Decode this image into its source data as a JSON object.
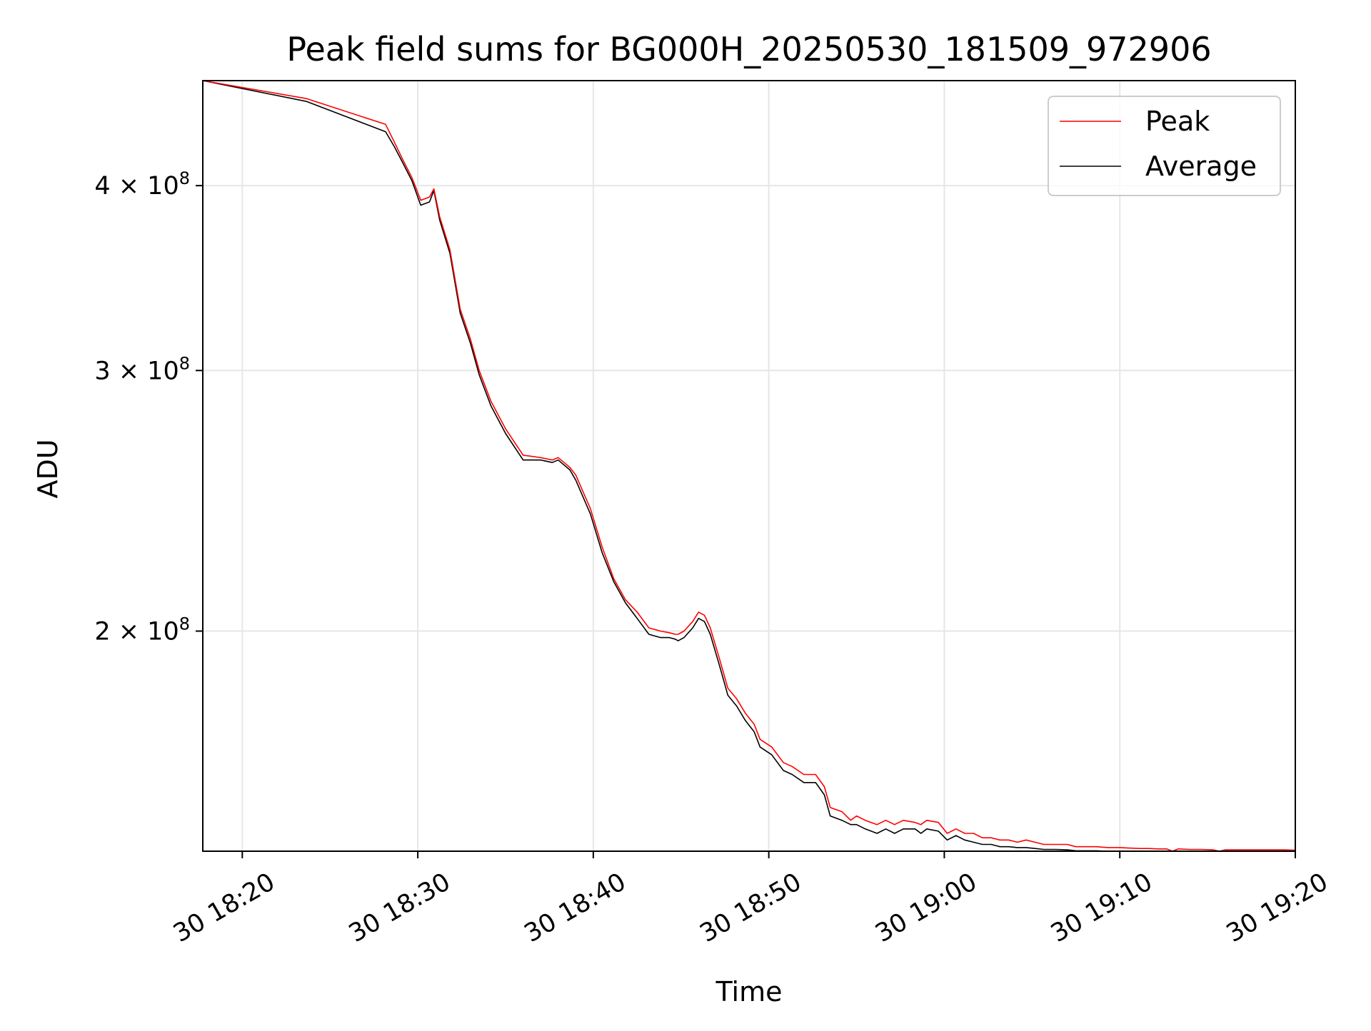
{
  "chart_data": {
    "type": "line",
    "title": "Peak field sums for BG000H_20250530_181509_972906",
    "xlabel": "Time",
    "ylabel": "ADU",
    "y_scale": "log",
    "xlim": [
      "2025-05-30 18:17:45",
      "2025-05-30 19:20:00"
    ],
    "ylim": [
      142000000,
      471000000
    ],
    "x_ticks": [
      "30 18:20",
      "30 18:30",
      "30 18:40",
      "30 18:50",
      "30 19:00",
      "30 19:10",
      "30 19:20"
    ],
    "y_ticks": [
      {
        "value": 200000000,
        "mantissa": "2",
        "base": "10",
        "exponent": "8"
      },
      {
        "value": 300000000,
        "mantissa": "3",
        "base": "10",
        "exponent": "8"
      },
      {
        "value": 400000000,
        "mantissa": "4",
        "base": "10",
        "exponent": "8"
      }
    ],
    "grid": true,
    "legend_position": "top-right",
    "series": [
      {
        "name": "Peak",
        "color": "#ff0000",
        "x": [
          "18:17:45",
          "18:23:40",
          "18:28:10",
          "18:28:40",
          "18:29:10",
          "18:29:40",
          "18:30:10",
          "18:30:40",
          "18:30:55",
          "18:31:15",
          "18:31:50",
          "18:32:25",
          "18:33:00",
          "18:33:30",
          "18:34:10",
          "18:35:00",
          "18:36:00",
          "18:37:00",
          "18:37:40",
          "18:38:00",
          "18:38:20",
          "18:38:40",
          "18:39:00",
          "18:39:50",
          "18:40:30",
          "18:41:10",
          "18:41:50",
          "18:42:30",
          "18:43:10",
          "18:43:50",
          "18:44:20",
          "18:44:40",
          "18:44:50",
          "18:45:10",
          "18:45:40",
          "18:46:00",
          "18:46:20",
          "18:46:40",
          "18:47:10",
          "18:47:40",
          "18:48:10",
          "18:48:40",
          "18:49:10",
          "18:49:30",
          "18:50:10",
          "18:50:50",
          "18:51:20",
          "18:52:00",
          "18:52:40",
          "18:53:10",
          "18:53:30",
          "18:54:10",
          "18:54:40",
          "18:55:00",
          "18:55:30",
          "18:56:10",
          "18:56:40",
          "18:57:10",
          "18:57:40",
          "18:58:20",
          "18:58:40",
          "18:59:00",
          "18:59:40",
          "19:00:10",
          "19:00:40",
          "19:01:10",
          "19:01:40",
          "19:02:10",
          "19:02:40",
          "19:03:10",
          "19:03:40",
          "19:04:10",
          "19:04:40",
          "19:05:10",
          "19:05:40",
          "19:06:20",
          "19:07:00",
          "19:07:30",
          "19:08:00",
          "19:08:40",
          "19:09:20",
          "19:10:00",
          "19:10:30",
          "19:11:10",
          "19:11:40",
          "19:12:10",
          "19:12:40",
          "19:13:00",
          "19:13:20",
          "19:14:00",
          "19:14:40",
          "19:15:20",
          "19:15:40",
          "19:16:00",
          "19:16:40",
          "19:17:20",
          "19:18:00",
          "19:18:40",
          "19:19:20",
          "19:20:00"
        ],
        "y": [
          471000000,
          458000000,
          440000000,
          428000000,
          416000000,
          405000000,
          391000000,
          393000000,
          398000000,
          381000000,
          362000000,
          330000000,
          315000000,
          300000000,
          286000000,
          274000000,
          263000000,
          262000000,
          261000000,
          262000000,
          260000000,
          258000000,
          255000000,
          242000000,
          228000000,
          217000000,
          210000000,
          206000000,
          201000000,
          200000000,
          199500000,
          199000000,
          199000000,
          200000000,
          203000000,
          206000000,
          205000000,
          201000000,
          192000000,
          183000000,
          180000000,
          176000000,
          173000000,
          169000000,
          167000000,
          163000000,
          162000000,
          160000000,
          160000000,
          157000000,
          152000000,
          151000000,
          149000000,
          150000000,
          149000000,
          148000000,
          149000000,
          148000000,
          149000000,
          148500000,
          148000000,
          149000000,
          148500000,
          146000000,
          147000000,
          146000000,
          146000000,
          145000000,
          145000000,
          144500000,
          144500000,
          144000000,
          144500000,
          144000000,
          143500000,
          143500000,
          143500000,
          143000000,
          143000000,
          143000000,
          142800000,
          142800000,
          142700000,
          142600000,
          142600000,
          142500000,
          142500000,
          142000000,
          142500000,
          142400000,
          142400000,
          142300000,
          142000000,
          142300000,
          142300000,
          142300000,
          142300000,
          142300000,
          142300000,
          142200000
        ]
      },
      {
        "name": "Average",
        "color": "#000000",
        "x": [
          "18:17:45",
          "18:23:40",
          "18:28:10",
          "18:28:40",
          "18:29:10",
          "18:29:40",
          "18:30:10",
          "18:30:40",
          "18:30:55",
          "18:31:15",
          "18:31:50",
          "18:32:25",
          "18:33:00",
          "18:33:30",
          "18:34:10",
          "18:35:00",
          "18:36:00",
          "18:37:00",
          "18:37:40",
          "18:38:00",
          "18:38:20",
          "18:38:40",
          "18:39:00",
          "18:39:50",
          "18:40:30",
          "18:41:10",
          "18:41:50",
          "18:42:30",
          "18:43:10",
          "18:43:50",
          "18:44:20",
          "18:44:40",
          "18:44:50",
          "18:45:10",
          "18:45:40",
          "18:46:00",
          "18:46:20",
          "18:46:40",
          "18:47:10",
          "18:47:40",
          "18:48:10",
          "18:48:40",
          "18:49:10",
          "18:49:30",
          "18:50:10",
          "18:50:50",
          "18:51:20",
          "18:52:00",
          "18:52:40",
          "18:53:10",
          "18:53:30",
          "18:54:10",
          "18:54:40",
          "18:55:00",
          "18:55:30",
          "18:56:10",
          "18:56:40",
          "18:57:10",
          "18:57:40",
          "18:58:20",
          "18:58:40",
          "18:59:00",
          "18:59:40",
          "19:00:10",
          "19:00:40",
          "19:01:10",
          "19:01:40",
          "19:02:10",
          "19:02:40",
          "19:03:10",
          "19:03:40",
          "19:04:10",
          "19:04:40",
          "19:05:10",
          "19:05:40",
          "19:06:20",
          "19:07:00",
          "19:07:30",
          "19:08:00",
          "19:08:40",
          "19:09:20",
          "19:10:00",
          "19:10:30",
          "19:11:10",
          "19:11:40",
          "19:12:10",
          "19:12:40",
          "19:13:00",
          "19:13:20",
          "19:14:00",
          "19:14:40",
          "19:15:20",
          "19:15:40",
          "19:16:00",
          "19:16:40",
          "19:17:20",
          "19:18:00",
          "19:18:40",
          "19:19:20",
          "19:20:00"
        ],
        "y": [
          471000000,
          456000000,
          435000000,
          425000000,
          414000000,
          403000000,
          388000000,
          390000000,
          397000000,
          379000000,
          360000000,
          328000000,
          313000000,
          298000000,
          284000000,
          272000000,
          261000000,
          261000000,
          260000000,
          261000000,
          259000000,
          257000000,
          253000000,
          240000000,
          226000000,
          216000000,
          209000000,
          204000000,
          199000000,
          198000000,
          198000000,
          197500000,
          197000000,
          198000000,
          201000000,
          204000000,
          203000000,
          199000000,
          190000000,
          181000000,
          178000000,
          174000000,
          171000000,
          167000000,
          165000000,
          161000000,
          160000000,
          158000000,
          158000000,
          155000000,
          150000000,
          149000000,
          148000000,
          148000000,
          147000000,
          146000000,
          147000000,
          146000000,
          147000000,
          147000000,
          146000000,
          147000000,
          146500000,
          144500000,
          145500000,
          144500000,
          144000000,
          143500000,
          143500000,
          143000000,
          143000000,
          142800000,
          142800000,
          142600000,
          142400000,
          142400000,
          142300000,
          142100000,
          142100000,
          142100000,
          142000000,
          142000000,
          142000000,
          141900000,
          141900000,
          141800000,
          141800000,
          141500000,
          141800000,
          141700000,
          141700000,
          141600000,
          141400000,
          141600000,
          141600000,
          141600000,
          141600000,
          141600000,
          141600000,
          141500000
        ]
      }
    ]
  }
}
